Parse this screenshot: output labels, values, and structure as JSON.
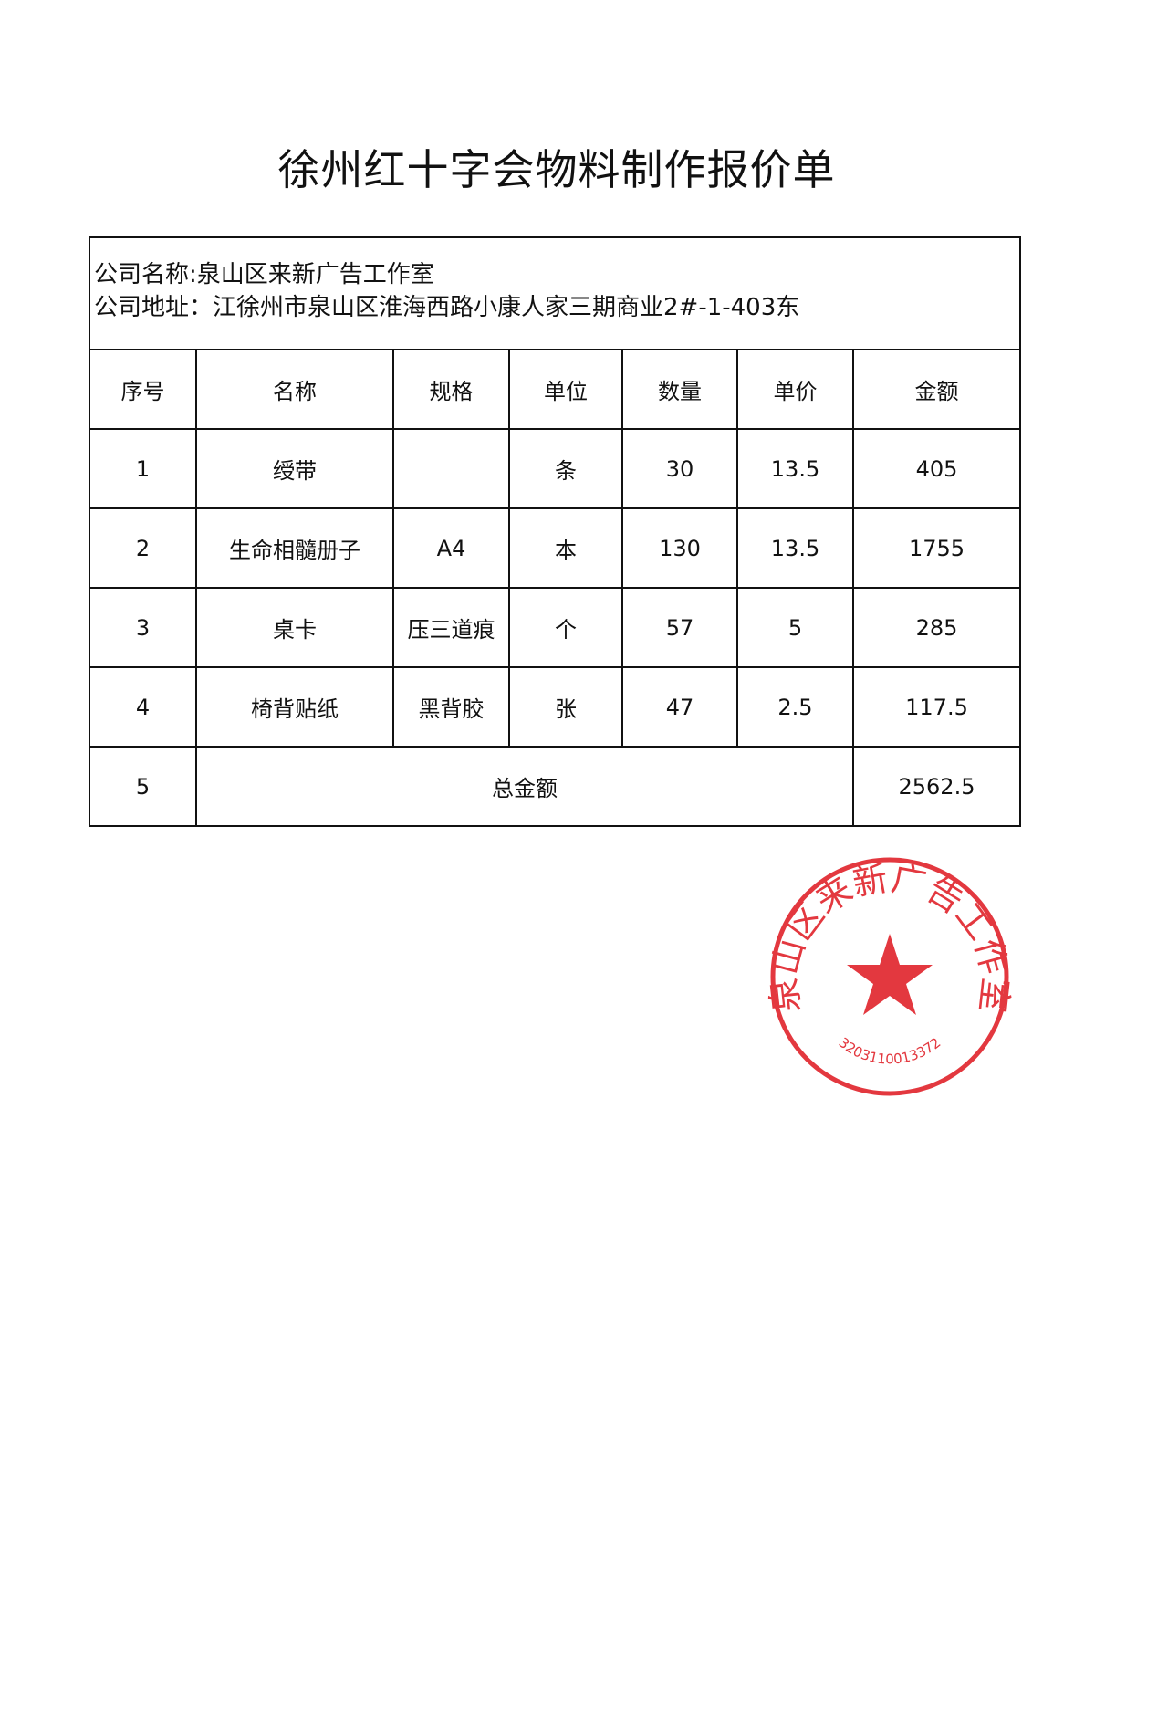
{
  "title": "徐州红十字会物料制作报价单",
  "company": {
    "name_line": "公司名称:泉山区来新广告工作室",
    "address_line": "公司地址：江徐州市泉山区淮海西路小康人家三期商业2#-1-403东"
  },
  "table": {
    "headers": [
      "序号",
      "名称",
      "规格",
      "单位",
      "数量",
      "单价",
      "金额"
    ],
    "rows": [
      [
        "1",
        "绶带",
        "",
        "条",
        "30",
        "13.5",
        "405"
      ],
      [
        "2",
        "生命相髓册子",
        "A4",
        "本",
        "130",
        "13.5",
        "1755"
      ],
      [
        "3",
        "桌卡",
        "压三道痕",
        "个",
        "57",
        "5",
        "285"
      ],
      [
        "4",
        "椅背贴纸",
        "黑背胶",
        "张",
        "47",
        "2.5",
        "117.5"
      ]
    ],
    "total": {
      "index": "5",
      "label": "总金额",
      "amount": "2562.5"
    }
  },
  "stamp": {
    "text": "泉山区来新广告工作室",
    "code": "3203110013372",
    "color": "#e0232b"
  }
}
